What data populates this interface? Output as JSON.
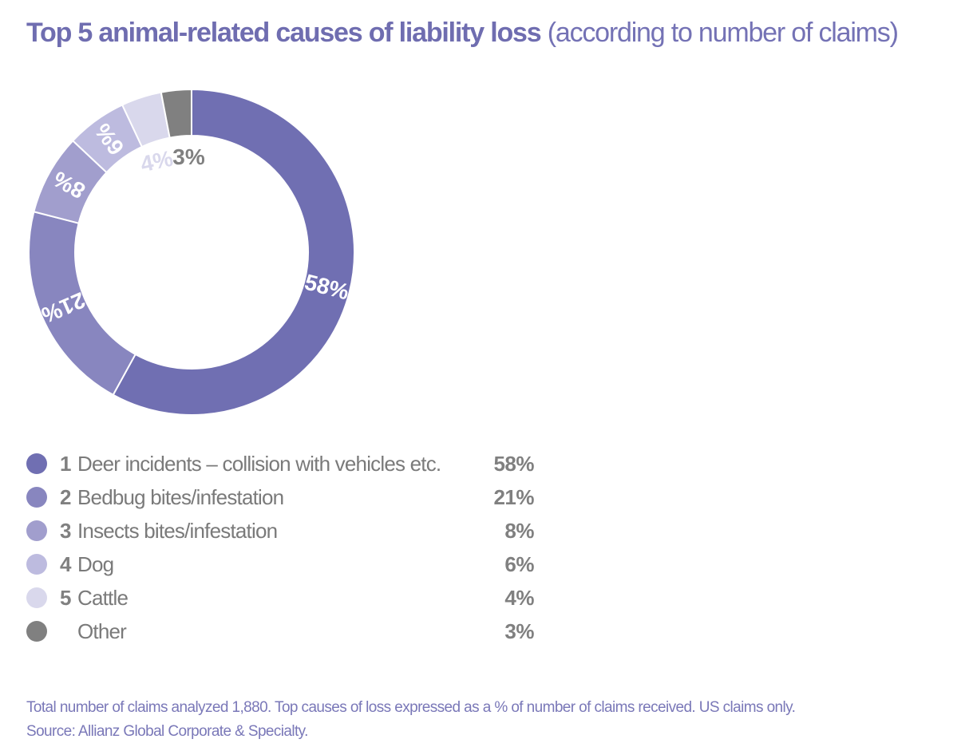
{
  "title": {
    "bold": "Top 5 animal-related causes of liability loss",
    "light": "(according to number of claims)"
  },
  "chart_data": {
    "type": "pie",
    "subtype": "donut",
    "title": "Top 5 animal-related causes of liability loss (according to number of claims)",
    "start": "12 o'clock, clockwise",
    "categories": [
      "Deer incidents – collision with vehicles etc.",
      "Bedbug bites/infestation",
      "Insects bites/infestation",
      "Dog",
      "Cattle",
      "Other"
    ],
    "values": [
      58,
      21,
      8,
      6,
      4,
      3
    ],
    "unit": "%",
    "data_labels": [
      "58%",
      "21%",
      "8%",
      "6%",
      "4%",
      "3%"
    ],
    "colors": [
      "#706fb2",
      "#8886bf",
      "#a19ecd",
      "#bdbbdf",
      "#d9d8ec",
      "#808080"
    ],
    "label_colors": [
      "#ffffff",
      "#ffffff",
      "#ffffff",
      "#ffffff",
      "#d9d8ec",
      "#808080"
    ],
    "legend_position": "bottom-left"
  },
  "legend": [
    {
      "rank": "1",
      "label": "Deer incidents – collision with vehicles etc.",
      "value": "58%",
      "color": "#706fb2"
    },
    {
      "rank": "2",
      "label": "Bedbug bites/infestation",
      "value": "21%",
      "color": "#8886bf"
    },
    {
      "rank": "3",
      "label": "Insects bites/infestation",
      "value": "8%",
      "color": "#a19ecd"
    },
    {
      "rank": "4",
      "label": "Dog",
      "value": "6%",
      "color": "#bdbbdf"
    },
    {
      "rank": "5",
      "label": "Cattle",
      "value": "4%",
      "color": "#d9d8ec"
    },
    {
      "rank": "",
      "label": "Other",
      "value": "3%",
      "color": "#808080"
    }
  ],
  "footnote": {
    "line1": "Total number of claims analyzed 1,880. Top causes of loss expressed as a % of number of claims received. US claims only.",
    "line2": "Source: Allianz Global Corporate & Specialty."
  }
}
